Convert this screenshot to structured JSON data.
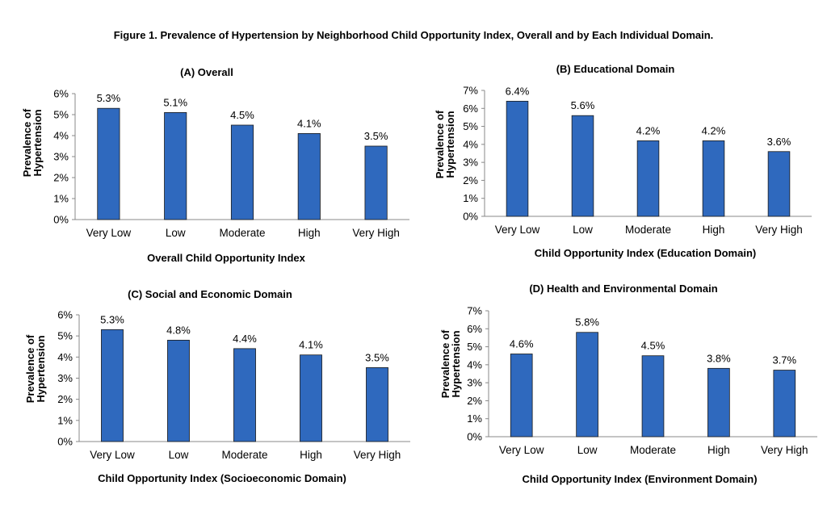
{
  "figure_title": "Figure 1. Prevalence of Hypertension by Neighborhood Child Opportunity Index, Overall and by Each Individual Domain.",
  "bar_color": "#2f69be",
  "chart_data": [
    {
      "type": "bar",
      "title": "(A) Overall",
      "categories": [
        "Very Low",
        "Low",
        "Moderate",
        "High",
        "Very High"
      ],
      "values": [
        5.3,
        5.1,
        4.5,
        4.1,
        3.5
      ],
      "data_labels": [
        "5.3%",
        "5.1%",
        "4.5%",
        "4.1%",
        "3.5%"
      ],
      "ylabel_lines": [
        "Prevalence of",
        "Hypertension"
      ],
      "xlabel": "Overall Child Opportunity Index",
      "ylim": [
        0,
        6
      ],
      "yticks": [
        "0%",
        "1%",
        "2%",
        "3%",
        "4%",
        "5%",
        "6%"
      ],
      "grid": false
    },
    {
      "type": "bar",
      "title": "(B) Educational Domain",
      "categories": [
        "Very Low",
        "Low",
        "Moderate",
        "High",
        "Very High"
      ],
      "values": [
        6.4,
        5.6,
        4.2,
        4.2,
        3.6
      ],
      "data_labels": [
        "6.4%",
        "5.6%",
        "4.2%",
        "4.2%",
        "3.6%"
      ],
      "ylabel_lines": [
        "Prevalence of",
        "Hypertension"
      ],
      "xlabel": "Child Opportunity Index (Education Domain)",
      "ylim": [
        0,
        7
      ],
      "yticks": [
        "0%",
        "1%",
        "2%",
        "3%",
        "4%",
        "5%",
        "6%",
        "7%"
      ],
      "grid": false
    },
    {
      "type": "bar",
      "title": "(C) Social and Economic Domain",
      "categories": [
        "Very Low",
        "Low",
        "Moderate",
        "High",
        "Very High"
      ],
      "values": [
        5.3,
        4.8,
        4.4,
        4.1,
        3.5
      ],
      "data_labels": [
        "5.3%",
        "4.8%",
        "4.4%",
        "4.1%",
        "3.5%"
      ],
      "ylabel_lines": [
        "Prevalence of",
        "Hypertension"
      ],
      "xlabel": "Child Opportunity Index (Socioeconomic Domain)",
      "ylim": [
        0,
        6
      ],
      "yticks": [
        "0%",
        "1%",
        "2%",
        "3%",
        "4%",
        "5%",
        "6%"
      ],
      "grid": false
    },
    {
      "type": "bar",
      "title": "(D) Health and Environmental Domain",
      "categories": [
        "Very Low",
        "Low",
        "Moderate",
        "High",
        "Very High"
      ],
      "values": [
        4.6,
        5.8,
        4.5,
        3.8,
        3.7
      ],
      "data_labels": [
        "4.6%",
        "5.8%",
        "4.5%",
        "3.8%",
        "3.7%"
      ],
      "ylabel_lines": [
        "Prevalence of",
        "Hypertension"
      ],
      "xlabel": "Child Opportunity Index (Environment Domain)",
      "ylim": [
        0,
        7
      ],
      "yticks": [
        "0%",
        "1%",
        "2%",
        "3%",
        "4%",
        "5%",
        "6%",
        "7%"
      ],
      "grid": false
    }
  ]
}
